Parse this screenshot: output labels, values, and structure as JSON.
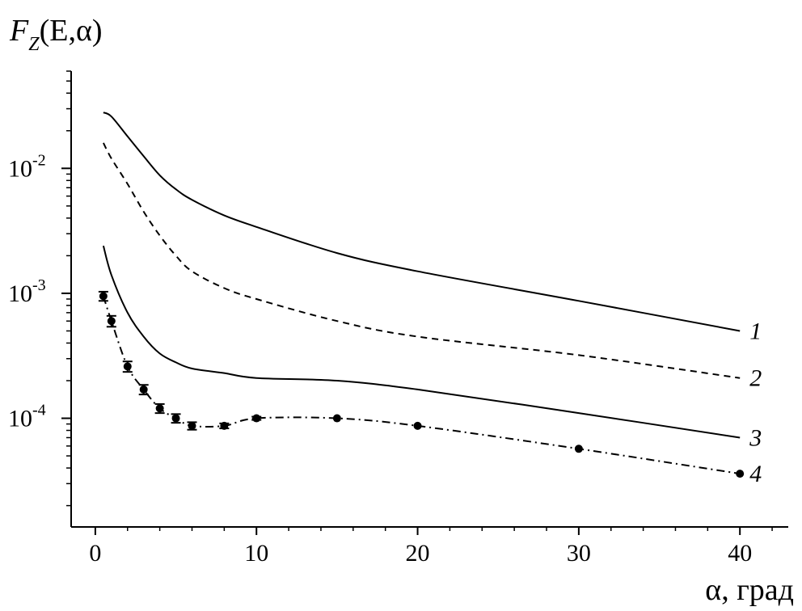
{
  "chart_data": {
    "type": "line",
    "ylabel": {
      "main": "F",
      "sub": "Z",
      "args": "(E,α)"
    },
    "xlabel": "α, град",
    "xlim": [
      -1.5,
      43
    ],
    "ylim": [
      1.35e-05,
      0.06
    ],
    "yscale": "log",
    "grid": false,
    "x_ticks": [
      0,
      10,
      20,
      30,
      40
    ],
    "x_tick_labels": [
      "0",
      "10",
      "20",
      "30",
      "40"
    ],
    "y_ticks": [
      0.0001,
      0.001,
      0.01
    ],
    "y_tick_labels": [
      {
        "base": "10",
        "exp": "-4"
      },
      {
        "base": "10",
        "exp": "-3"
      },
      {
        "base": "10",
        "exp": "-2"
      }
    ],
    "series": [
      {
        "label": "1",
        "style": "solid",
        "x": [
          0.5,
          1,
          2,
          3,
          4,
          5,
          6,
          8,
          10,
          15,
          20,
          30,
          40
        ],
        "y": [
          0.028,
          0.026,
          0.018,
          0.0125,
          0.0088,
          0.0068,
          0.0056,
          0.0042,
          0.0034,
          0.0021,
          0.0015,
          0.00087,
          0.0005
        ]
      },
      {
        "label": "2",
        "style": "dashed",
        "x": [
          0.5,
          1,
          2,
          3,
          4,
          5,
          6,
          8,
          10,
          15,
          20,
          30,
          40
        ],
        "y": [
          0.016,
          0.012,
          0.0075,
          0.0045,
          0.0029,
          0.002,
          0.0015,
          0.0011,
          0.0009,
          0.0006,
          0.00045,
          0.00032,
          0.00021
        ]
      },
      {
        "label": "3",
        "style": "solid",
        "x": [
          0.5,
          1,
          2,
          3,
          4,
          5,
          6,
          8,
          10,
          15,
          20,
          30,
          40
        ],
        "y": [
          0.0024,
          0.0014,
          0.0007,
          0.00045,
          0.00033,
          0.00028,
          0.00025,
          0.00023,
          0.00021,
          0.0002,
          0.00017,
          0.00011,
          7e-05
        ]
      },
      {
        "label": "4",
        "style": "dashdot",
        "markers": true,
        "x": [
          0.5,
          1,
          2,
          3,
          4,
          5,
          6,
          8,
          10,
          15,
          20,
          30,
          40
        ],
        "y": [
          0.00095,
          0.0006,
          0.00026,
          0.00017,
          0.00012,
          0.0001,
          8.7e-05,
          8.7e-05,
          0.0001,
          0.0001,
          8.7e-05,
          5.7e-05,
          3.6e-05
        ],
        "err": [
          8e-05,
          6e-05,
          2.5e-05,
          1.5e-05,
          1e-05,
          8e-06,
          6e-06,
          4e-06,
          3e-06,
          2e-06,
          2e-06,
          1e-06,
          1e-06
        ]
      }
    ]
  }
}
